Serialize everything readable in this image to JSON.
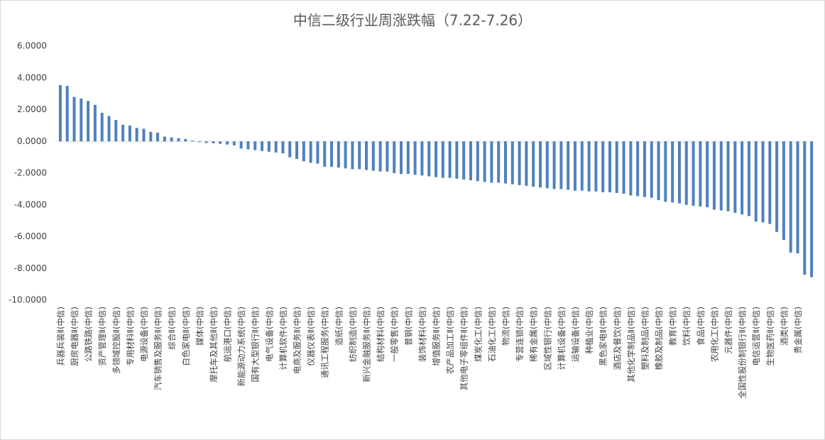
{
  "chart_data": {
    "type": "bar",
    "title": "中信二级行业周涨跌幅（7.22-7.26）",
    "color": "#4f81bd",
    "ylim": [
      -10,
      6
    ],
    "yticks": [
      {
        "value": 6,
        "label": "6.0000"
      },
      {
        "value": 4,
        "label": "4.0000"
      },
      {
        "value": 2,
        "label": "2.0000"
      },
      {
        "value": 0,
        "label": "0.0000"
      },
      {
        "value": -2,
        "label": "-2.0000"
      },
      {
        "value": -4,
        "label": "-4.0000"
      },
      {
        "value": -6,
        "label": "-6.0000"
      },
      {
        "value": -8,
        "label": "-8.0000"
      },
      {
        "value": -10,
        "label": "-10.0000"
      }
    ],
    "categories": [
      "兵器兵装Ⅱ(中信)",
      null,
      "厨房电器Ⅱ(中信)",
      null,
      "公路铁路(中信)",
      null,
      "资产管理Ⅱ(中信)",
      null,
      "多领域控股Ⅱ(中信)",
      null,
      "专用材料Ⅱ(中信)",
      null,
      "电源设备(中信)",
      null,
      "汽车销售及服务Ⅱ(中信)",
      null,
      "综合Ⅱ(中信)",
      null,
      "白色家电Ⅱ(中信)",
      null,
      "媒体(中信)",
      null,
      "摩托车及其他Ⅱ(中信)",
      null,
      "航运港口(中信)",
      null,
      "新能源动力系统(中信)",
      null,
      "国有大型银行Ⅱ(中信)",
      null,
      "电气设备(中信)",
      null,
      "计算机软件(中信)",
      null,
      "电商及服务Ⅱ(中信)",
      null,
      "仪器仪表Ⅱ(中信)",
      null,
      "通讯工程服务(中信)",
      null,
      "造纸(中信)",
      null,
      "纺织制造(中信)",
      null,
      "新兴金融服务Ⅱ(中信)",
      null,
      "结构材料(中信)",
      null,
      "一般零售(中信)",
      null,
      "普钢(中信)",
      null,
      "装饰材料(中信)",
      null,
      "增值服务Ⅱ(中信)",
      null,
      "农产品加工Ⅱ(中信)",
      null,
      "其他电子零组件Ⅱ(中信)",
      null,
      "煤炭化工(中信)",
      null,
      "石油化工(中信)",
      null,
      "物流(中信)",
      null,
      "专营连锁(中信)",
      null,
      "稀有金属(中信)",
      null,
      "区域性银行(中信)",
      null,
      "计算机设备(中信)",
      null,
      "运输设备(中信)",
      null,
      "种植业(中信)",
      null,
      "黑色家电Ⅱ(中信)",
      null,
      "酒店及餐饮(中信)",
      null,
      "其他化学制品Ⅱ(中信)",
      null,
      "塑料及制品(中信)",
      null,
      "橡胶及制品(中信)",
      null,
      "教育(中信)",
      null,
      "饮料(中信)",
      null,
      "食品(中信)",
      null,
      "农用化工(中信)",
      null,
      "元器件(中信)",
      null,
      "全国性股份制银行Ⅱ(中信)",
      null,
      "电信运营Ⅱ(中信)",
      null,
      "生物医药Ⅱ(中信)",
      null,
      "酒类(中信)",
      null,
      "贵金属(中信)",
      null,
      null
    ],
    "values": [
      3.55,
      3.5,
      2.8,
      2.7,
      2.55,
      2.3,
      1.8,
      1.6,
      1.35,
      1.05,
      1.0,
      0.85,
      0.8,
      0.6,
      0.55,
      0.3,
      0.25,
      0.2,
      0.15,
      0.05,
      -0.05,
      -0.1,
      -0.12,
      -0.15,
      -0.2,
      -0.25,
      -0.45,
      -0.5,
      -0.55,
      -0.6,
      -0.65,
      -0.7,
      -0.75,
      -1.0,
      -1.1,
      -1.25,
      -1.35,
      -1.4,
      -1.6,
      -1.6,
      -1.65,
      -1.7,
      -1.75,
      -1.75,
      -1.8,
      -1.85,
      -1.9,
      -1.9,
      -2.0,
      -2.05,
      -2.05,
      -2.1,
      -2.15,
      -2.2,
      -2.25,
      -2.3,
      -2.3,
      -2.35,
      -2.4,
      -2.45,
      -2.5,
      -2.55,
      -2.6,
      -2.6,
      -2.65,
      -2.7,
      -2.75,
      -2.8,
      -2.85,
      -2.9,
      -2.95,
      -3.0,
      -3.0,
      -3.05,
      -3.1,
      -3.1,
      -3.15,
      -3.15,
      -3.2,
      -3.2,
      -3.25,
      -3.3,
      -3.4,
      -3.45,
      -3.5,
      -3.55,
      -3.7,
      -3.8,
      -3.85,
      -3.9,
      -4.0,
      -4.05,
      -4.1,
      -4.15,
      -4.3,
      -4.35,
      -4.4,
      -4.5,
      -4.6,
      -4.7,
      -5.05,
      -5.1,
      -5.2,
      -5.7,
      -6.2,
      -7.0,
      -7.05,
      -8.4,
      -8.55
    ]
  }
}
